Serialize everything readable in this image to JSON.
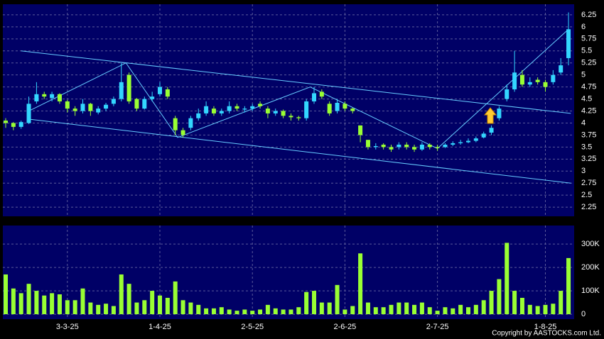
{
  "chart_data": {
    "type": "candlestick",
    "categories": [
      null,
      null,
      null,
      null,
      null,
      null,
      null,
      null,
      "3-3-25",
      null,
      null,
      null,
      null,
      null,
      null,
      null,
      null,
      null,
      null,
      null,
      "1-4-25",
      null,
      null,
      null,
      null,
      null,
      null,
      null,
      null,
      null,
      null,
      null,
      "2-5-25",
      null,
      null,
      null,
      null,
      null,
      null,
      null,
      null,
      null,
      null,
      null,
      "2-6-25",
      null,
      null,
      null,
      null,
      null,
      null,
      null,
      null,
      null,
      null,
      null,
      "2-7-25",
      null,
      null,
      null,
      null,
      null,
      null,
      null,
      null,
      null,
      null,
      null,
      null,
      null,
      "1-8-25",
      null,
      null,
      null
    ],
    "open": [
      4.05,
      4.0,
      3.92,
      4.0,
      4.45,
      4.6,
      4.52,
      4.6,
      4.45,
      4.3,
      4.25,
      4.4,
      4.22,
      4.3,
      4.4,
      4.5,
      5.0,
      4.5,
      4.3,
      4.5,
      4.6,
      4.7,
      4.1,
      3.85,
      3.9,
      4.1,
      4.2,
      4.3,
      4.2,
      4.25,
      4.35,
      4.28,
      4.3,
      4.4,
      4.3,
      4.2,
      4.25,
      4.15,
      4.12,
      4.1,
      4.45,
      4.65,
      4.4,
      4.25,
      4.4,
      4.3,
      3.95,
      3.65,
      3.5,
      3.55,
      3.5,
      3.5,
      3.55,
      3.5,
      3.45,
      3.55,
      3.5,
      3.5,
      3.55,
      3.58,
      3.6,
      3.63,
      3.7,
      3.8,
      4.1,
      4.5,
      4.7,
      5.0,
      4.8,
      4.9,
      4.85,
      4.85,
      5.05,
      5.35
    ],
    "high": [
      4.1,
      4.02,
      4.05,
      4.55,
      4.85,
      4.65,
      4.65,
      4.62,
      4.48,
      4.35,
      4.5,
      4.42,
      4.35,
      4.42,
      4.55,
      5.25,
      5.05,
      4.52,
      4.55,
      4.65,
      4.85,
      4.75,
      4.15,
      3.9,
      4.15,
      4.3,
      4.45,
      4.35,
      4.3,
      4.45,
      4.4,
      4.35,
      4.4,
      4.45,
      4.35,
      4.3,
      4.28,
      4.2,
      4.15,
      4.5,
      4.75,
      4.7,
      4.45,
      4.5,
      4.45,
      4.32,
      3.95,
      3.65,
      3.58,
      3.58,
      3.55,
      3.6,
      3.6,
      3.55,
      3.6,
      3.58,
      3.55,
      3.58,
      3.62,
      3.65,
      3.68,
      3.72,
      3.82,
      3.95,
      4.35,
      4.8,
      5.5,
      5.1,
      4.95,
      4.95,
      4.9,
      5.1,
      5.35,
      6.3
    ],
    "low": [
      3.9,
      3.85,
      3.88,
      3.98,
      4.4,
      4.5,
      4.45,
      4.4,
      4.22,
      4.15,
      4.2,
      4.15,
      4.18,
      4.25,
      4.35,
      4.45,
      4.4,
      4.25,
      4.28,
      4.45,
      4.55,
      4.5,
      3.75,
      3.7,
      3.85,
      4.05,
      4.15,
      4.15,
      4.15,
      4.2,
      4.25,
      4.22,
      4.25,
      4.3,
      4.1,
      4.15,
      4.1,
      4.05,
      4.05,
      4.05,
      4.4,
      4.5,
      4.15,
      4.2,
      4.25,
      4.2,
      3.6,
      3.45,
      3.45,
      3.45,
      3.4,
      3.45,
      3.45,
      3.4,
      3.42,
      3.45,
      3.42,
      3.48,
      3.52,
      3.55,
      3.58,
      3.6,
      3.68,
      3.75,
      4.05,
      4.45,
      4.65,
      4.75,
      4.75,
      4.8,
      4.65,
      4.8,
      5.0,
      5.2
    ],
    "close": [
      4.0,
      3.92,
      4.02,
      4.4,
      4.6,
      4.55,
      4.6,
      4.45,
      4.3,
      4.25,
      4.4,
      4.25,
      4.3,
      4.38,
      4.5,
      4.85,
      4.45,
      4.3,
      4.5,
      4.55,
      4.75,
      4.55,
      3.85,
      3.75,
      4.1,
      4.2,
      4.35,
      4.2,
      4.25,
      4.35,
      4.3,
      4.3,
      4.35,
      4.35,
      4.2,
      4.25,
      4.15,
      4.12,
      4.1,
      4.45,
      4.62,
      4.55,
      4.2,
      4.42,
      4.3,
      4.25,
      3.75,
      3.5,
      3.52,
      3.5,
      3.45,
      3.55,
      3.5,
      3.45,
      3.55,
      3.5,
      3.48,
      3.55,
      3.58,
      3.6,
      3.63,
      3.68,
      3.78,
      3.9,
      4.3,
      4.7,
      5.05,
      4.8,
      4.85,
      4.85,
      4.75,
      5.0,
      5.2,
      5.95
    ],
    "up_color": "#33d6ff",
    "down_color": "#99ff33",
    "ylim": [
      2.06,
      6.47
    ],
    "yticks": [
      2.25,
      2.5,
      2.75,
      3,
      3.25,
      3.5,
      3.75,
      4,
      4.25,
      4.5,
      4.75,
      5,
      5.25,
      5.5,
      5.75,
      6,
      6.25
    ],
    "trendlines": {
      "color": "#66ccff",
      "lines": [
        {
          "x": [
            2,
            73.3
          ],
          "y": [
            5.5,
            4.2
          ]
        },
        {
          "x": [
            3,
            73.3
          ],
          "y": [
            4.08,
            2.75
          ]
        },
        {
          "x": [
            3,
            15.6,
            22.3,
            39.5,
            56,
            73
          ],
          "y": [
            4.25,
            5.25,
            3.7,
            4.75,
            3.47,
            5.95
          ]
        }
      ]
    },
    "volume": {
      "color": "#99ff33",
      "values": [
        170000,
        110000,
        90000,
        130000,
        100000,
        80000,
        90000,
        85000,
        60000,
        60000,
        110000,
        50000,
        40000,
        45000,
        35000,
        170000,
        130000,
        50000,
        60000,
        100000,
        80000,
        70000,
        140000,
        60000,
        50000,
        40000,
        25000,
        25000,
        30000,
        20000,
        15000,
        20000,
        15000,
        20000,
        40000,
        25000,
        20000,
        20000,
        30000,
        95000,
        100000,
        50000,
        50000,
        125000,
        20000,
        35000,
        260000,
        50000,
        30000,
        30000,
        40000,
        50000,
        50000,
        40000,
        50000,
        30000,
        15000,
        30000,
        25000,
        40000,
        30000,
        40000,
        60000,
        100000,
        150000,
        305000,
        100000,
        70000,
        40000,
        35000,
        40000,
        45000,
        100000,
        240000
      ],
      "ylim": [
        -21000,
        379000
      ],
      "yticks": [
        0,
        {
          "value": 100000,
          "label": "100K"
        },
        {
          "value": 200000,
          "label": "200K"
        },
        {
          "value": 300000,
          "label": "300K"
        }
      ]
    },
    "copyright": "Copyright by AASTOCKS.com Ltd."
  }
}
